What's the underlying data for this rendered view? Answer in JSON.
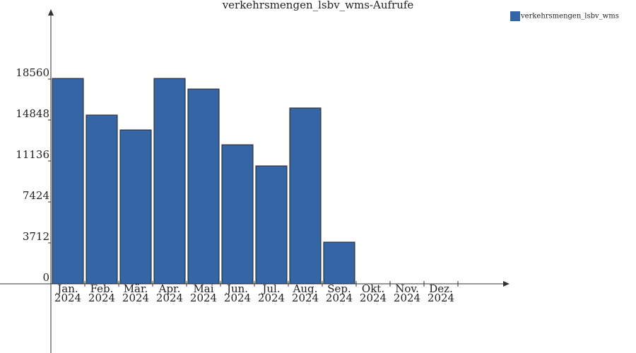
{
  "chart_data": {
    "type": "bar",
    "title": "verkehrsmengen_lsbv_wms-Aufrufe",
    "categories": [
      [
        "Jan.",
        "2024"
      ],
      [
        "Feb.",
        "2024"
      ],
      [
        "Mär.",
        "2024"
      ],
      [
        "Apr.",
        "2024"
      ],
      [
        "Mai",
        "2024"
      ],
      [
        "Jun.",
        "2024"
      ],
      [
        "Jul.",
        "2024"
      ],
      [
        "Aug.",
        "2024"
      ],
      [
        "Sep.",
        "2024"
      ],
      [
        "Okt.",
        "2024"
      ],
      [
        "Nov.",
        "2024"
      ],
      [
        "Dez.",
        "2024"
      ]
    ],
    "series": [
      {
        "name": "verkehrsmengen_lsbv_wms",
        "color": "#3465a4",
        "values": [
          18620,
          15300,
          13950,
          18620,
          17660,
          12610,
          10690,
          15940,
          3780,
          null,
          null,
          null
        ]
      }
    ],
    "ylim": [
      -6272,
      24768
    ],
    "yticks": [
      0,
      3712,
      7424,
      11136,
      14848,
      18560
    ]
  }
}
